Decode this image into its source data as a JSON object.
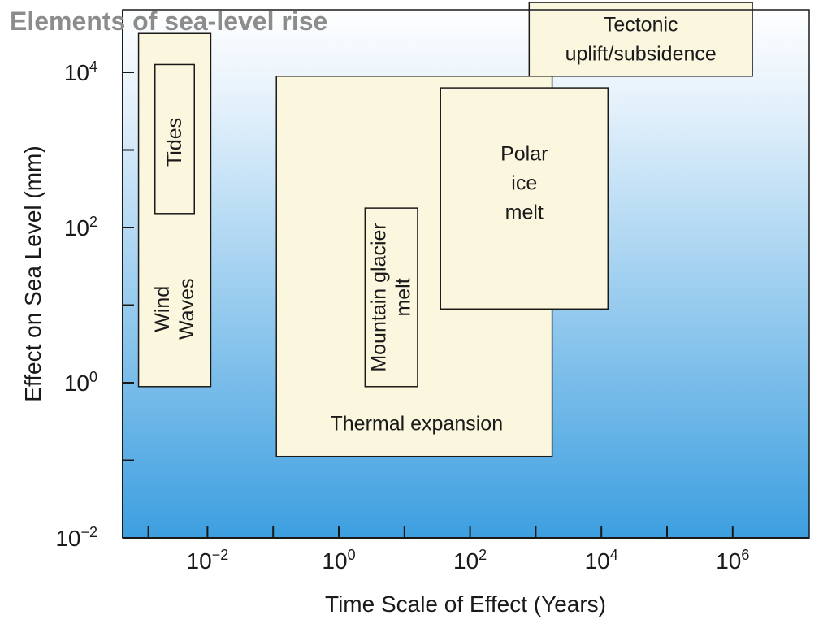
{
  "slide": {
    "title": "Elements of sea-level rise"
  },
  "chart_data": {
    "type": "range-box",
    "xlabel": "Time Scale of Effect (Years)",
    "ylabel": "Effect on Sea Level (mm)",
    "xscale": "log10",
    "yscale": "log10",
    "xlim_exponent": [
      -3,
      6.4
    ],
    "ylim_exponent": [
      -2,
      4.8
    ],
    "x_ticks": [
      {
        "base": "10",
        "exp": "−2",
        "value_exp": -2
      },
      {
        "base": "10",
        "exp": "0",
        "value_exp": 0
      },
      {
        "base": "10",
        "exp": "2",
        "value_exp": 2
      },
      {
        "base": "10",
        "exp": "4",
        "value_exp": 4
      },
      {
        "base": "10",
        "exp": "6",
        "value_exp": 6
      }
    ],
    "y_ticks": [
      {
        "base": "10",
        "exp": "−2",
        "value_exp": -2
      },
      {
        "base": "10",
        "exp": "0",
        "value_exp": 0
      },
      {
        "base": "10",
        "exp": "2",
        "value_exp": 2
      },
      {
        "base": "10",
        "exp": "4",
        "value_exp": 4
      }
    ],
    "background_gradient": [
      "#ffffff",
      "#3d9fe0"
    ],
    "box_fill": "#fbf7df",
    "elements": [
      {
        "name": "wind-waves",
        "lines": [
          "Wind",
          "Waves"
        ],
        "x_exp": [
          -3.05,
          -1.95
        ],
        "y_exp": [
          -0.05,
          4.5
        ],
        "label_rotated": true
      },
      {
        "name": "tides",
        "lines": [
          "Tides"
        ],
        "x_exp": [
          -2.8,
          -2.2
        ],
        "y_exp": [
          2.18,
          4.1
        ],
        "label_rotated": true
      },
      {
        "name": "thermal-expansion",
        "lines": [
          "Thermal expansion"
        ],
        "x_exp": [
          -0.95,
          3.25
        ],
        "y_exp": [
          -0.95,
          3.95
        ],
        "label_rotated": false
      },
      {
        "name": "mountain-glacier-melt",
        "lines": [
          "Mountain glacier",
          "melt"
        ],
        "x_exp": [
          0.4,
          1.2
        ],
        "y_exp": [
          -0.05,
          2.25
        ],
        "label_rotated": true
      },
      {
        "name": "polar-ice-melt",
        "lines": [
          "Polar",
          "ice",
          "melt"
        ],
        "x_exp": [
          1.55,
          4.1
        ],
        "y_exp": [
          0.95,
          3.8
        ],
        "label_rotated": false
      },
      {
        "name": "tectonic-uplift-subsidence",
        "lines": [
          "Tectonic",
          "uplift/subsidence"
        ],
        "x_exp": [
          2.9,
          6.3
        ],
        "y_exp": [
          3.95,
          4.9
        ],
        "label_rotated": false
      }
    ]
  }
}
